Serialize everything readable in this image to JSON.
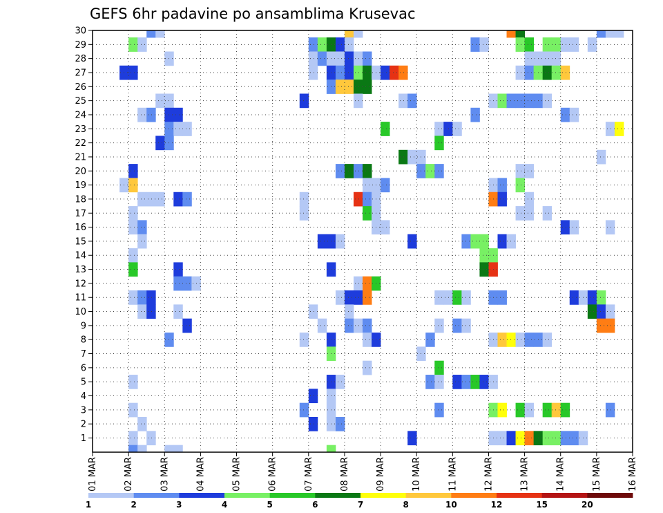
{
  "chart_data": {
    "type": "heatmap",
    "title": "GEFS 6hr padavine po ansamblima Krusevac",
    "xlabel": "",
    "ylabel": "",
    "y_members": [
      1,
      30
    ],
    "y_tick_labels": [
      "1",
      "2",
      "3",
      "4",
      "5",
      "6",
      "7",
      "8",
      "9",
      "10",
      "11",
      "12",
      "13",
      "14",
      "15",
      "16",
      "17",
      "18",
      "19",
      "20",
      "21",
      "22",
      "23",
      "24",
      "25",
      "26",
      "27",
      "28",
      "29",
      "30"
    ],
    "x_tick_labels": [
      "01 MAR",
      "02 MAR",
      "03 MAR",
      "04 MAR",
      "05 MAR",
      "06 MAR",
      "07 MAR",
      "08 MAR",
      "09 MAR",
      "10 MAR",
      "11 MAR",
      "12 MAR",
      "13 MAR",
      "14 MAR",
      "15 MAR",
      "16 MAR"
    ],
    "x_range_days": [
      0,
      15
    ],
    "time_step_hours": 6,
    "grid": true,
    "legend_placement": "bottom",
    "legend_levels": [
      "1",
      "2",
      "3",
      "4",
      "5",
      "6",
      "7",
      "8",
      "10",
      "12",
      "15",
      "20"
    ],
    "legend_colors": [
      "#b4c8f5",
      "#5f8cf0",
      "#1e3cdc",
      "#78f064",
      "#28c828",
      "#0a7814",
      "#ffff0a",
      "#ffc83c",
      "#ff7d14",
      "#e63214",
      "#b41414",
      "#6e0a0a"
    ],
    "cells_format": "[member, day_offset_from_01_MAR, color_class_index_1_to_12]",
    "cells": [
      [
        30,
        1.5,
        2
      ],
      [
        30,
        1.75,
        1
      ],
      [
        30,
        7.0,
        8
      ],
      [
        30,
        7.25,
        1
      ],
      [
        30,
        11.5,
        9
      ],
      [
        30,
        11.75,
        6
      ],
      [
        30,
        14.0,
        2
      ],
      [
        30,
        14.25,
        1
      ],
      [
        30,
        14.5,
        1
      ],
      [
        29,
        1.0,
        4
      ],
      [
        29,
        1.25,
        1
      ],
      [
        29,
        6.0,
        2
      ],
      [
        29,
        6.25,
        4
      ],
      [
        29,
        6.5,
        6
      ],
      [
        29,
        6.75,
        3
      ],
      [
        29,
        7.0,
        1
      ],
      [
        29,
        10.5,
        2
      ],
      [
        29,
        10.75,
        1
      ],
      [
        29,
        11.75,
        4
      ],
      [
        29,
        12.0,
        5
      ],
      [
        29,
        12.5,
        4
      ],
      [
        29,
        12.75,
        4
      ],
      [
        29,
        13.0,
        1
      ],
      [
        29,
        13.25,
        1
      ],
      [
        29,
        13.75,
        1
      ],
      [
        28,
        2.0,
        1
      ],
      [
        28,
        6.0,
        1
      ],
      [
        28,
        6.25,
        2
      ],
      [
        28,
        6.5,
        1
      ],
      [
        28,
        6.75,
        1
      ],
      [
        28,
        7.0,
        3
      ],
      [
        28,
        7.25,
        1
      ],
      [
        28,
        7.5,
        2
      ],
      [
        28,
        12.0,
        1
      ],
      [
        28,
        12.25,
        1
      ],
      [
        28,
        12.5,
        1
      ],
      [
        28,
        12.75,
        1
      ],
      [
        27,
        0.75,
        3
      ],
      [
        27,
        1.0,
        3
      ],
      [
        27,
        6.0,
        1
      ],
      [
        27,
        6.5,
        3
      ],
      [
        27,
        6.75,
        2
      ],
      [
        27,
        7.0,
        3
      ],
      [
        27,
        7.25,
        4
      ],
      [
        27,
        7.5,
        6
      ],
      [
        27,
        7.75,
        1
      ],
      [
        27,
        8.0,
        3
      ],
      [
        27,
        8.25,
        10
      ],
      [
        27,
        8.5,
        9
      ],
      [
        27,
        11.75,
        1
      ],
      [
        27,
        12.0,
        2
      ],
      [
        27,
        12.25,
        4
      ],
      [
        27,
        12.5,
        6
      ],
      [
        27,
        12.75,
        4
      ],
      [
        27,
        13.0,
        8
      ],
      [
        26,
        6.5,
        2
      ],
      [
        26,
        6.75,
        8
      ],
      [
        26,
        7.0,
        8
      ],
      [
        26,
        7.25,
        6
      ],
      [
        26,
        7.5,
        6
      ],
      [
        25,
        1.75,
        1
      ],
      [
        25,
        2.0,
        1
      ],
      [
        25,
        5.75,
        3
      ],
      [
        25,
        7.25,
        1
      ],
      [
        25,
        8.5,
        1
      ],
      [
        25,
        8.75,
        2
      ],
      [
        25,
        11.0,
        1
      ],
      [
        25,
        11.25,
        4
      ],
      [
        25,
        11.5,
        2
      ],
      [
        25,
        11.75,
        2
      ],
      [
        25,
        12.0,
        2
      ],
      [
        25,
        12.25,
        2
      ],
      [
        25,
        12.5,
        1
      ],
      [
        24,
        1.25,
        1
      ],
      [
        24,
        1.5,
        2
      ],
      [
        24,
        2.0,
        3
      ],
      [
        24,
        2.25,
        3
      ],
      [
        24,
        10.5,
        2
      ],
      [
        24,
        13.0,
        2
      ],
      [
        24,
        13.25,
        1
      ],
      [
        23,
        2.0,
        2
      ],
      [
        23,
        2.25,
        1
      ],
      [
        23,
        2.5,
        1
      ],
      [
        23,
        8.0,
        5
      ],
      [
        23,
        9.5,
        1
      ],
      [
        23,
        9.75,
        3
      ],
      [
        23,
        10.0,
        1
      ],
      [
        23,
        14.25,
        1
      ],
      [
        23,
        14.5,
        7
      ],
      [
        22,
        1.75,
        3
      ],
      [
        22,
        2.0,
        2
      ],
      [
        22,
        9.5,
        5
      ],
      [
        21,
        8.5,
        6
      ],
      [
        21,
        8.75,
        1
      ],
      [
        21,
        9.0,
        1
      ],
      [
        21,
        14.0,
        1
      ],
      [
        20,
        1.0,
        3
      ],
      [
        20,
        6.75,
        2
      ],
      [
        20,
        7.0,
        6
      ],
      [
        20,
        7.25,
        2
      ],
      [
        20,
        7.5,
        6
      ],
      [
        20,
        9.0,
        2
      ],
      [
        20,
        9.25,
        4
      ],
      [
        20,
        9.5,
        2
      ],
      [
        20,
        11.75,
        1
      ],
      [
        20,
        12.0,
        1
      ],
      [
        19,
        0.75,
        1
      ],
      [
        19,
        1.0,
        8
      ],
      [
        19,
        7.5,
        1
      ],
      [
        19,
        7.75,
        1
      ],
      [
        19,
        8.0,
        2
      ],
      [
        19,
        11.0,
        1
      ],
      [
        19,
        11.25,
        2
      ],
      [
        19,
        11.75,
        4
      ],
      [
        18,
        1.25,
        1
      ],
      [
        18,
        1.5,
        1
      ],
      [
        18,
        1.75,
        1
      ],
      [
        18,
        2.25,
        3
      ],
      [
        18,
        2.5,
        2
      ],
      [
        18,
        5.75,
        1
      ],
      [
        18,
        7.25,
        10
      ],
      [
        18,
        7.5,
        2
      ],
      [
        18,
        7.75,
        1
      ],
      [
        18,
        11.0,
        9
      ],
      [
        18,
        11.25,
        3
      ],
      [
        18,
        12.0,
        1
      ],
      [
        17,
        1.0,
        1
      ],
      [
        17,
        5.75,
        1
      ],
      [
        17,
        7.5,
        5
      ],
      [
        17,
        7.75,
        1
      ],
      [
        17,
        11.75,
        1
      ],
      [
        17,
        12.0,
        1
      ],
      [
        17,
        12.5,
        1
      ],
      [
        16,
        1.0,
        1
      ],
      [
        16,
        1.25,
        2
      ],
      [
        16,
        7.75,
        1
      ],
      [
        16,
        8.0,
        1
      ],
      [
        16,
        13.0,
        3
      ],
      [
        16,
        13.25,
        1
      ],
      [
        16,
        14.25,
        1
      ],
      [
        15,
        1.25,
        1
      ],
      [
        15,
        6.25,
        3
      ],
      [
        15,
        6.5,
        3
      ],
      [
        15,
        6.75,
        1
      ],
      [
        15,
        8.75,
        3
      ],
      [
        15,
        10.25,
        2
      ],
      [
        15,
        10.5,
        4
      ],
      [
        15,
        10.75,
        4
      ],
      [
        15,
        11.25,
        3
      ],
      [
        15,
        11.5,
        1
      ],
      [
        14,
        1.0,
        1
      ],
      [
        14,
        10.75,
        4
      ],
      [
        14,
        11.0,
        4
      ],
      [
        13,
        1.0,
        5
      ],
      [
        13,
        2.25,
        3
      ],
      [
        13,
        6.5,
        3
      ],
      [
        13,
        10.75,
        6
      ],
      [
        13,
        11.0,
        10
      ],
      [
        12,
        2.25,
        2
      ],
      [
        12,
        2.5,
        2
      ],
      [
        12,
        2.75,
        1
      ],
      [
        12,
        7.25,
        1
      ],
      [
        12,
        7.5,
        9
      ],
      [
        12,
        7.75,
        5
      ],
      [
        11,
        1.0,
        1
      ],
      [
        11,
        1.25,
        2
      ],
      [
        11,
        1.5,
        3
      ],
      [
        11,
        6.75,
        1
      ],
      [
        11,
        7.0,
        3
      ],
      [
        11,
        7.25,
        3
      ],
      [
        11,
        7.5,
        9
      ],
      [
        11,
        9.5,
        1
      ],
      [
        11,
        9.75,
        1
      ],
      [
        11,
        10.0,
        5
      ],
      [
        11,
        10.25,
        1
      ],
      [
        11,
        11.0,
        2
      ],
      [
        11,
        11.25,
        2
      ],
      [
        11,
        13.25,
        3
      ],
      [
        11,
        13.5,
        1
      ],
      [
        11,
        13.75,
        3
      ],
      [
        11,
        14.0,
        4
      ],
      [
        10,
        1.25,
        1
      ],
      [
        10,
        1.5,
        3
      ],
      [
        10,
        2.25,
        1
      ],
      [
        10,
        6.0,
        1
      ],
      [
        10,
        7.0,
        1
      ],
      [
        10,
        13.75,
        6
      ],
      [
        10,
        14.0,
        3
      ],
      [
        10,
        14.25,
        1
      ],
      [
        9,
        2.5,
        3
      ],
      [
        9,
        6.25,
        1
      ],
      [
        9,
        7.0,
        2
      ],
      [
        9,
        7.25,
        1
      ],
      [
        9,
        7.5,
        2
      ],
      [
        9,
        9.5,
        1
      ],
      [
        9,
        10.0,
        2
      ],
      [
        9,
        10.25,
        1
      ],
      [
        9,
        14.0,
        9
      ],
      [
        9,
        14.25,
        9
      ],
      [
        8,
        2.0,
        2
      ],
      [
        8,
        5.75,
        1
      ],
      [
        8,
        6.5,
        3
      ],
      [
        8,
        7.5,
        1
      ],
      [
        8,
        7.75,
        3
      ],
      [
        8,
        9.25,
        2
      ],
      [
        8,
        11.0,
        1
      ],
      [
        8,
        11.25,
        8
      ],
      [
        8,
        11.5,
        7
      ],
      [
        8,
        11.75,
        1
      ],
      [
        8,
        12.0,
        2
      ],
      [
        8,
        12.25,
        2
      ],
      [
        8,
        12.5,
        1
      ],
      [
        7,
        6.5,
        4
      ],
      [
        7,
        9.0,
        1
      ],
      [
        6,
        7.5,
        1
      ],
      [
        6,
        9.5,
        5
      ],
      [
        5,
        1.0,
        1
      ],
      [
        5,
        6.5,
        3
      ],
      [
        5,
        6.75,
        1
      ],
      [
        5,
        9.25,
        2
      ],
      [
        5,
        9.5,
        1
      ],
      [
        5,
        10.0,
        3
      ],
      [
        5,
        10.25,
        2
      ],
      [
        5,
        10.5,
        5
      ],
      [
        5,
        10.75,
        3
      ],
      [
        5,
        11.0,
        1
      ],
      [
        4,
        6.0,
        3
      ],
      [
        4,
        6.5,
        1
      ],
      [
        3,
        1.0,
        1
      ],
      [
        3,
        5.75,
        2
      ],
      [
        3,
        6.5,
        1
      ],
      [
        3,
        9.5,
        2
      ],
      [
        3,
        11.0,
        4
      ],
      [
        3,
        11.25,
        7
      ],
      [
        3,
        11.75,
        5
      ],
      [
        3,
        12.0,
        1
      ],
      [
        3,
        12.5,
        5
      ],
      [
        3,
        12.75,
        8
      ],
      [
        3,
        13.0,
        5
      ],
      [
        3,
        14.25,
        2
      ],
      [
        2,
        1.25,
        1
      ],
      [
        2,
        6.0,
        3
      ],
      [
        2,
        6.5,
        1
      ],
      [
        2,
        6.75,
        2
      ],
      [
        1,
        1.0,
        1
      ],
      [
        1,
        1.5,
        1
      ],
      [
        1,
        8.75,
        3
      ],
      [
        1,
        11.0,
        1
      ],
      [
        1,
        11.25,
        1
      ],
      [
        1,
        11.5,
        3
      ],
      [
        1,
        11.75,
        7
      ],
      [
        1,
        12.0,
        9
      ],
      [
        1,
        12.25,
        6
      ],
      [
        1,
        12.5,
        4
      ],
      [
        1,
        12.75,
        4
      ],
      [
        1,
        13.0,
        2
      ],
      [
        1,
        13.25,
        2
      ],
      [
        1,
        13.5,
        1
      ],
      [
        0,
        1.0,
        2
      ],
      [
        0,
        1.25,
        1
      ],
      [
        0,
        2.0,
        1
      ],
      [
        0,
        2.25,
        1
      ],
      [
        0,
        6.5,
        4
      ]
    ]
  }
}
